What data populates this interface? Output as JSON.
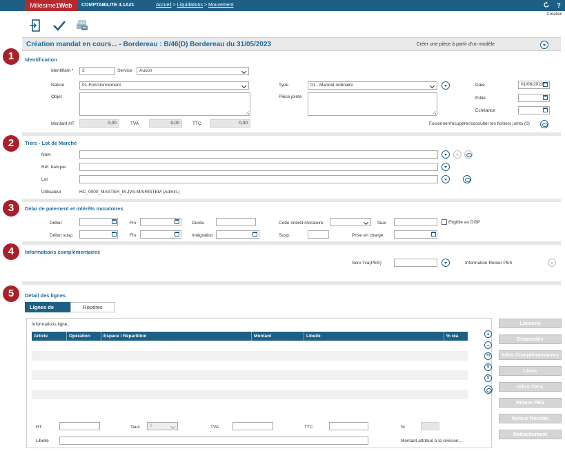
{
  "topbar": {
    "logo_left": "Millésime",
    "logo_right": "1Web",
    "app_name": "COMPTABILITE 4.1A#1",
    "breadcrumb": [
      "Accueil",
      "Liquidations",
      "Mouvement"
    ],
    "breadcrumb_sep": ">",
    "creation_label": "Création"
  },
  "toolbar": {
    "icons": [
      "exit-icon",
      "validate-checkmark-icon",
      "print-documents-icon"
    ]
  },
  "header": {
    "title": "Création mandat en cours... - Bordereau : B/46(D) Bordereau du 31/05/2023",
    "model_link": "Créer une pièce à partir d'un modèle"
  },
  "identification": {
    "number": "1",
    "title": "Identification",
    "identifiant_label": "Identifiant *",
    "identifiant_value": "2",
    "service_label": "Service",
    "service_value": "Aucun",
    "nature_label": "Nature",
    "nature_value": "01-Fonctionnement",
    "objet_label": "Objet",
    "type_label": "Type",
    "type_value": "01 - Mandat ordinaire",
    "piece_jointe_label": "Pièce jointe",
    "date_label": "Date",
    "date_value": "01/06/2023",
    "edite_label": "Edité",
    "echeance_label": "Echéance",
    "montant_ht_label": "Montant HT",
    "montant_ht_value": "0,00",
    "tva_label": "TVA",
    "tva_value": "0,00",
    "ttc_label": "TTC",
    "ttc_value": "0,00",
    "fusion_label": "Fusionner/récupérer/consulter les fichiers joints (0)"
  },
  "tiers": {
    "number": "2",
    "title": "Tiers - Lot de Marché",
    "nom_label": "Nom",
    "ref_banque_label": "Réf. banque",
    "lot_label": "Lot",
    "utilisateur_label": "Utilisateur",
    "utilisateur_value": "HC_0000_MASTER_M.JVS-MAIRISTEM (Admin.)"
  },
  "delai": {
    "number": "3",
    "title": "Délai de paiement et intérêts moratoires",
    "debut_label": "Début",
    "fin_label": "Fin",
    "duree_label": "Durée",
    "code_interet_label": "Code intérêt moratoire",
    "taux_label": "Taux",
    "eligible_label": "Eligible au DGP",
    "debut_susp_label": "Début susp.",
    "fin2_label": "Fin",
    "integration_label": "Intégration",
    "susp_label": "Susp.",
    "prise_en_charge_label": "Prise en charge"
  },
  "infos": {
    "number": "4",
    "title": "Informations complémentaires",
    "serv_tva_label": "Serv.Tva(PES)",
    "info_retour_label": "Information Retour PES"
  },
  "details": {
    "number": "5",
    "title": "Détail des lignes",
    "tabs": [
      "Lignes de pièce",
      "Repères"
    ],
    "box_title": "Informations ligne...",
    "columns": [
      "Article",
      "Opération",
      "Espace / Répartition",
      "Montant",
      "Libellé",
      "% réa"
    ],
    "ht_label": "HT",
    "taux_label": "Taux",
    "taux_value": "0",
    "tva_label": "TVA",
    "ttc_label": "TTC",
    "pct_label": "%",
    "libelle_label": "Libellé",
    "montant_revision_label": "Montant attribué à la révision...",
    "row_controls": [
      "add-icon",
      "remove-icon",
      "refresh-icon",
      "clip-icon",
      "clip-icon",
      "view-icon"
    ]
  },
  "side_buttons": [
    "Liaisons",
    "Disponible",
    "Infos Complémentaires",
    "Liens",
    "Infos Tiers",
    "Retour PES",
    "Retour Recette",
    "Rattachement"
  ],
  "colors": {
    "brand_blue": "#1e5f86",
    "brand_red": "#a8202a",
    "title_blue": "#1e6b9e"
  }
}
